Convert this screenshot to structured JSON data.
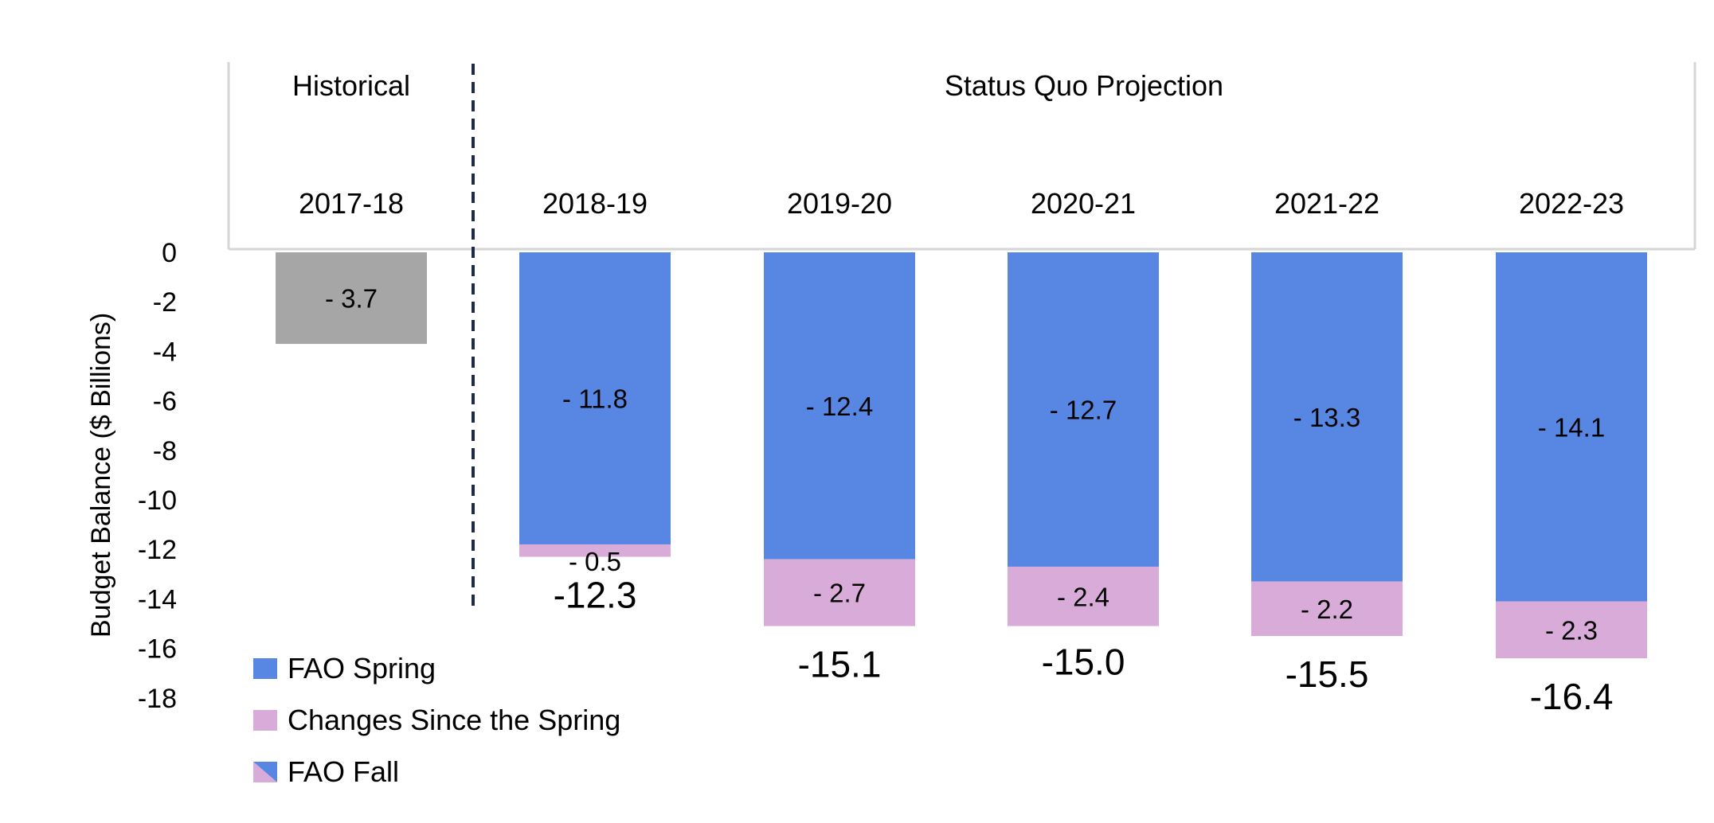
{
  "chart_data": {
    "type": "bar",
    "stacked": true,
    "ylabel": "Budget Balance ($ Billions)",
    "ylim": [
      -18,
      0
    ],
    "yticks": [
      0,
      -2,
      -4,
      -6,
      -8,
      -10,
      -12,
      -14,
      -16,
      -18
    ],
    "grid": false,
    "period_headers": [
      {
        "label": "Historical",
        "categories": [
          "2017-18"
        ]
      },
      {
        "label": "Status Quo Projection",
        "categories": [
          "2018-19",
          "2019-20",
          "2020-21",
          "2021-22",
          "2022-23"
        ]
      }
    ],
    "categories": [
      "2017-18",
      "2018-19",
      "2019-20",
      "2020-21",
      "2021-22",
      "2022-23"
    ],
    "historical": {
      "category": "2017-18",
      "value": -3.7,
      "label": "- 3.7",
      "color": "#a6a6a6"
    },
    "series": [
      {
        "name": "FAO Spring",
        "color": "#5787e3",
        "values": [
          null,
          -11.8,
          -12.4,
          -12.7,
          -13.3,
          -14.1
        ],
        "labels": [
          "",
          "- 11.8",
          "- 12.4",
          "- 12.7",
          "- 13.3",
          "- 14.1"
        ]
      },
      {
        "name": "Changes Since the Spring",
        "color": "#d9abd9",
        "values": [
          null,
          -0.5,
          -2.7,
          -2.4,
          -2.2,
          -2.3
        ],
        "labels": [
          "",
          "- 0.5",
          "- 2.7",
          "- 2.4",
          "- 2.2",
          "- 2.3"
        ]
      }
    ],
    "totals": {
      "name": "FAO Fall",
      "values": [
        null,
        -12.3,
        -15.1,
        -15.0,
        -15.5,
        -16.4
      ],
      "labels": [
        "",
        "-12.3",
        "-15.1",
        "-15.0",
        "-15.5",
        "-16.4"
      ]
    },
    "legend": {
      "position": "bottom-left",
      "items": [
        {
          "name": "FAO Spring",
          "swatch": "solid",
          "color": "#5787e3"
        },
        {
          "name": "Changes Since the Spring",
          "swatch": "solid",
          "color": "#d9abd9"
        },
        {
          "name": "FAO Fall",
          "swatch": "split",
          "colors": [
            "#5787e3",
            "#d9abd9"
          ]
        }
      ]
    },
    "divider_color": "#1f2a44"
  }
}
